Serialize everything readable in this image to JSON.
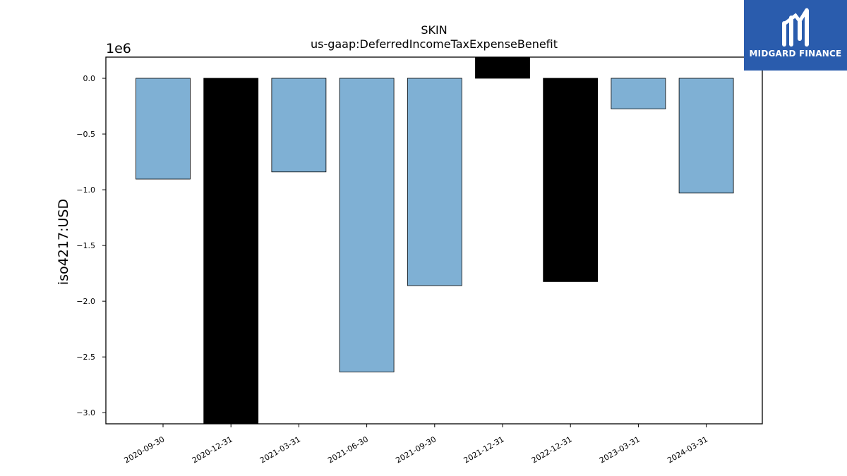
{
  "chart_data": {
    "type": "bar",
    "title": "SKIN",
    "subtitle": "us-gaap:DeferredIncomeTaxExpenseBenefit",
    "ylabel": "iso4217:USD",
    "xlabel": "",
    "y_offset_label": "1e6",
    "ylim": [
      -3.1,
      0.19
    ],
    "yticks": [
      0.0,
      -0.5,
      -1.0,
      -1.5,
      -2.0,
      -2.5,
      -3.0
    ],
    "ytick_labels": [
      "0.0",
      "−0.5",
      "−1.0",
      "−1.5",
      "−2.0",
      "−2.5",
      "−3.0"
    ],
    "categories": [
      "2020-09-30",
      "2020-12-31",
      "2021-03-31",
      "2021-06-30",
      "2021-09-30",
      "2021-12-31",
      "2022-12-31",
      "2023-03-31",
      "2024-03-31"
    ],
    "values": [
      -0.905,
      -3.1,
      -0.84,
      -2.635,
      -1.86,
      0.19,
      -1.825,
      -0.275,
      -1.03
    ],
    "bar_colors": [
      "#7fb0d4",
      "#000000",
      "#7fb0d4",
      "#7fb0d4",
      "#7fb0d4",
      "#000000",
      "#000000",
      "#7fb0d4",
      "#7fb0d4"
    ],
    "grid": false,
    "legend": "none"
  },
  "logo": {
    "text": "MIDGARD FINANCE",
    "background": "#2a5cad",
    "icon": "midgard-m-logo-icon"
  }
}
